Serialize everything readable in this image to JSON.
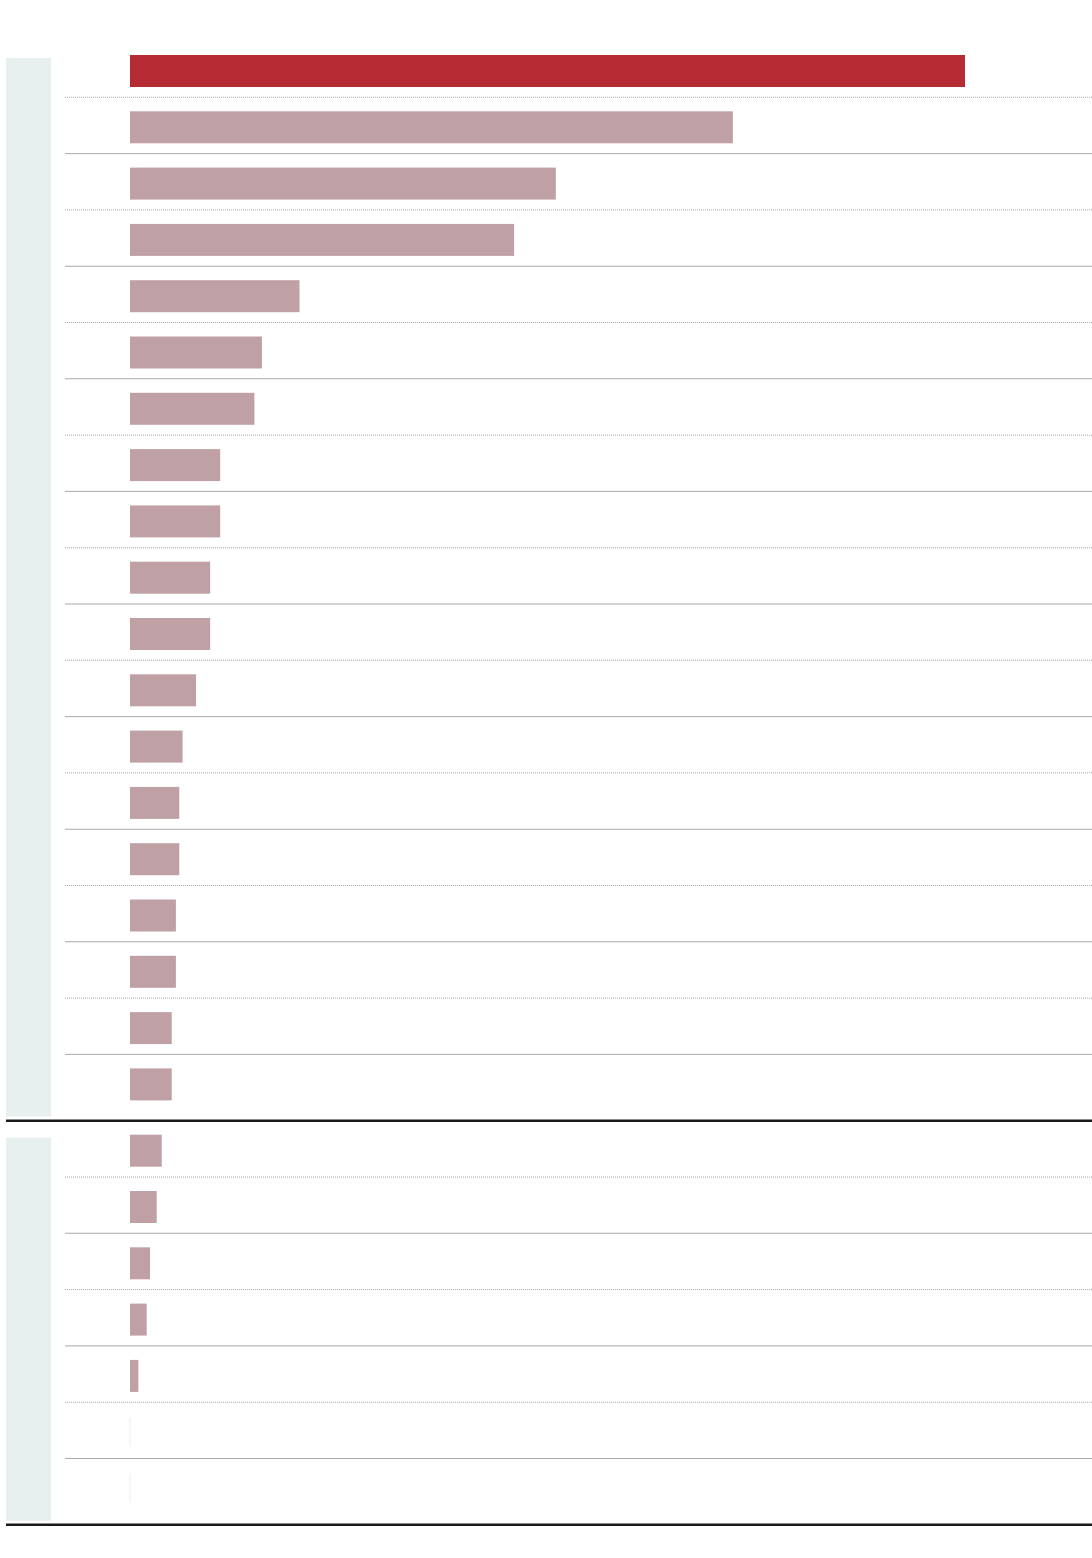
{
  "colors": {
    "highlight_bar": "#b52a33",
    "bar": "#bfa1a5",
    "group_band": "#e8efef",
    "row_rule": "#a8a8a8",
    "group_rule": "#1a1a1a"
  },
  "chart_data": {
    "type": "bar",
    "orientation": "horizontal",
    "title": "",
    "xlabel": "",
    "ylabel": "",
    "grid": false,
    "legend": "none",
    "xlim": [
      0,
      100
    ],
    "groups": [
      {
        "rows": [
          {
            "value": 100,
            "highlight": true
          },
          {
            "value": 72.2
          },
          {
            "value": 51.0
          },
          {
            "value": 46.0
          },
          {
            "value": 20.3
          },
          {
            "value": 15.8
          },
          {
            "value": 14.9
          },
          {
            "value": 10.8
          },
          {
            "value": 10.8
          },
          {
            "value": 9.6
          },
          {
            "value": 9.6
          },
          {
            "value": 7.9
          },
          {
            "value": 6.3
          },
          {
            "value": 5.9
          },
          {
            "value": 5.9
          },
          {
            "value": 5.5
          },
          {
            "value": 5.5
          },
          {
            "value": 5.0
          },
          {
            "value": 5.0
          }
        ]
      },
      {
        "rows": [
          {
            "value": 3.8
          },
          {
            "value": 3.2
          },
          {
            "value": 2.4
          },
          {
            "value": 2.0
          },
          {
            "value": 1.0
          },
          {
            "value": 0
          },
          {
            "value": 0
          }
        ]
      }
    ]
  }
}
